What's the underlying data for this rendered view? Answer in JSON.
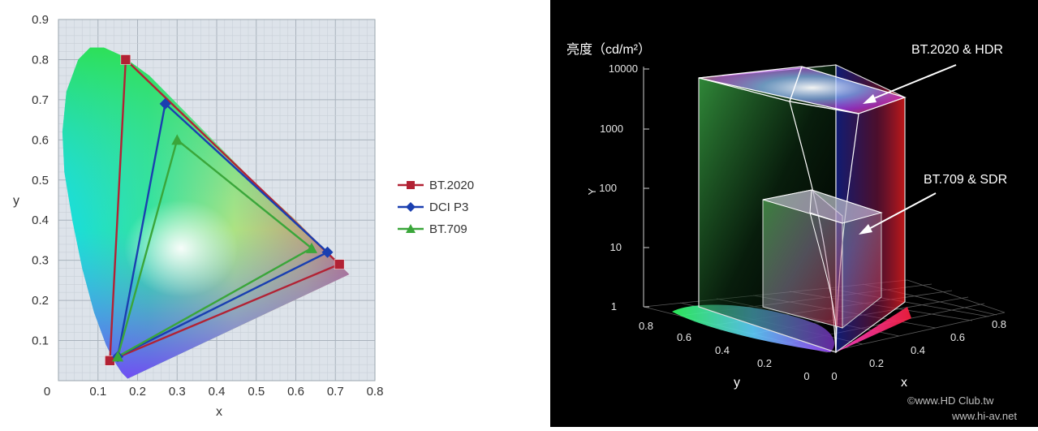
{
  "chart_data": [
    {
      "type": "scatter",
      "title": "",
      "xlabel": "x",
      "ylabel": "y",
      "xlim": [
        0,
        0.8
      ],
      "ylim": [
        0,
        0.9
      ],
      "grid": true,
      "legend_position": "right",
      "xticks": [
        "0",
        "0.1",
        "0.2",
        "0.3",
        "0.4",
        "0.5",
        "0.6",
        "0.7",
        "0.8"
      ],
      "yticks": [
        "0.1",
        "0.2",
        "0.3",
        "0.4",
        "0.5",
        "0.6",
        "0.7",
        "0.8",
        "0.9"
      ],
      "series": [
        {
          "name": "BT.2020",
          "color": "#b22234",
          "marker": "square",
          "points": [
            [
              0.17,
              0.8
            ],
            [
              0.71,
              0.29
            ],
            [
              0.13,
              0.05
            ],
            [
              0.17,
              0.8
            ]
          ]
        },
        {
          "name": "DCI P3",
          "color": "#1a3fb0",
          "marker": "diamond",
          "points": [
            [
              0.27,
              0.69
            ],
            [
              0.68,
              0.32
            ],
            [
              0.15,
              0.06
            ],
            [
              0.27,
              0.69
            ]
          ]
        },
        {
          "name": "BT.709",
          "color": "#3aa63a",
          "marker": "triangle",
          "points": [
            [
              0.3,
              0.6
            ],
            [
              0.64,
              0.33
            ],
            [
              0.15,
              0.06
            ],
            [
              0.3,
              0.6
            ]
          ]
        }
      ]
    },
    {
      "type": "3d-volume",
      "ylabel": "亮度（cd/m²）",
      "zlabel": "Y",
      "z_scale": "log",
      "zlim": [
        1,
        10000
      ],
      "zticks": [
        "1",
        "10",
        "100",
        "1000",
        "10000"
      ],
      "x_axis_label": "x",
      "y_axis_label": "y",
      "xticks": [
        "0",
        "0.2",
        "0.4",
        "0.6",
        "0.8"
      ],
      "yticks": [
        "0.8",
        "0.6",
        "0.4",
        "0.2",
        "0"
      ],
      "annotations": [
        {
          "label": "BT.2020 & HDR",
          "max_luminance": 10000
        },
        {
          "label": "BT.709 & SDR",
          "max_luminance": 100
        }
      ]
    }
  ],
  "watermark": {
    "line1": "©www.HD Club.tw",
    "line2": "www.hi-av.net"
  }
}
